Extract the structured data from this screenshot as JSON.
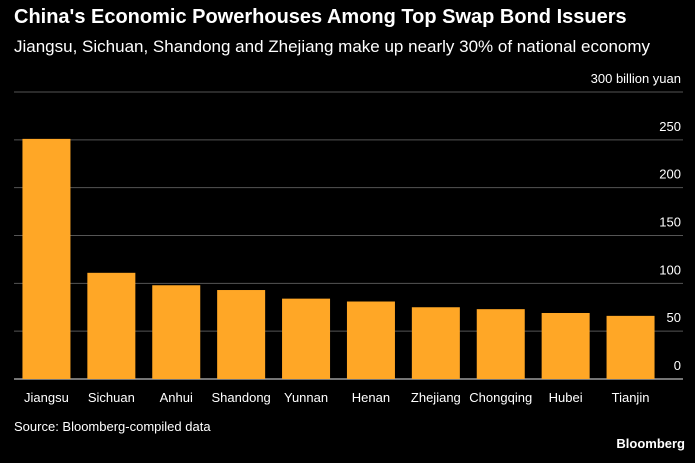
{
  "header": {
    "title": "China's Economic Powerhouses Among Top Swap Bond Issuers",
    "subtitle": "Jiangsu, Sichuan, Shandong and Zhejiang make up nearly 30% of national economy"
  },
  "footer": {
    "source": "Source: Bloomberg-compiled data",
    "brand": "Bloomberg"
  },
  "colors": {
    "bar": "#FFA726",
    "grid": "#555555",
    "background": "#000000",
    "text": "#FFFFFF"
  },
  "chart_data": {
    "type": "bar",
    "title": "China's Economic Powerhouses Among Top Swap Bond Issuers",
    "subtitle": "Jiangsu, Sichuan, Shandong and Zhejiang make up nearly 30% of national economy",
    "ylabel": "300 billion yuan",
    "categories": [
      "Jiangsu",
      "Sichuan",
      "Anhui",
      "Shandong",
      "Yunnan",
      "Henan",
      "Zhejiang",
      "Chongqing",
      "Hubei",
      "Tianjin"
    ],
    "values": [
      251,
      111,
      98,
      93,
      84,
      81,
      75,
      73,
      69,
      66
    ],
    "ylim": [
      0,
      300
    ],
    "yticks": [
      0,
      50,
      100,
      150,
      200,
      250,
      300
    ],
    "ytick_labels": [
      "0",
      "50",
      "100",
      "150",
      "200",
      "250",
      "300 billion yuan"
    ],
    "grid": true,
    "y_axis_position": "right"
  }
}
